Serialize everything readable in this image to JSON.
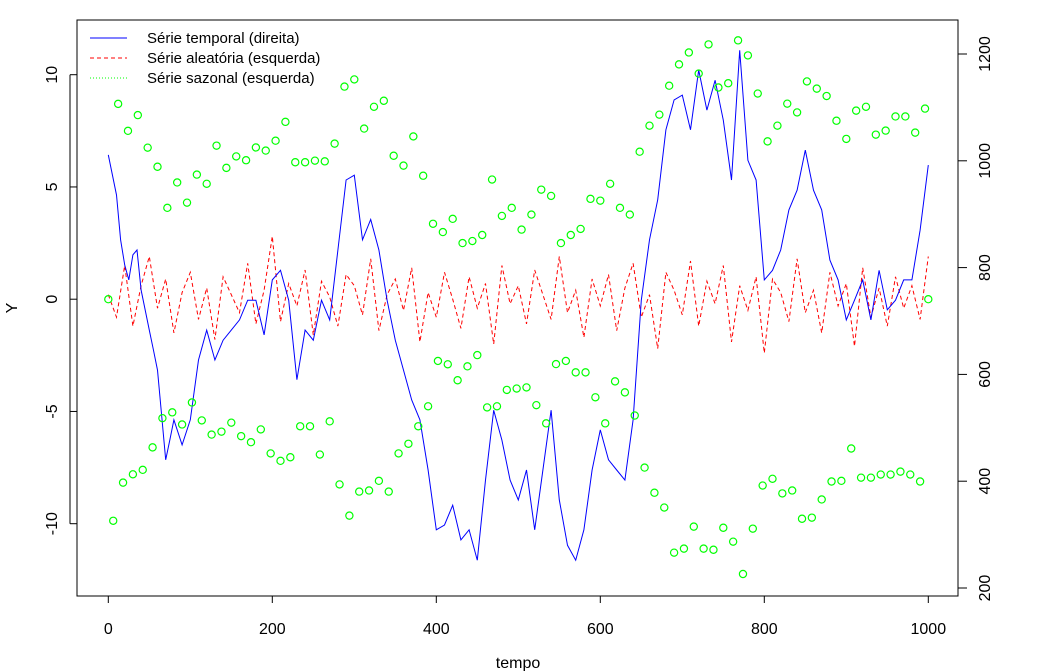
{
  "chart_data": {
    "type": "line",
    "title": "",
    "xlabel": "tempo",
    "ylabel": "Y",
    "y2label": "",
    "xlim": [
      0,
      1000
    ],
    "ylim": [
      -12.3,
      11.9
    ],
    "y2lim": [
      200,
      1240
    ],
    "x_ticks": [
      "0",
      "200",
      "400",
      "600",
      "800",
      "1000"
    ],
    "y_ticks": [
      "-10",
      "-5",
      "0",
      "5",
      "10"
    ],
    "y2_ticks": [
      "200",
      "400",
      "600",
      "800",
      "1000",
      "1200"
    ],
    "grid": false,
    "legend_position": "top-left",
    "legend": [
      {
        "label": "Série temporal (direita)",
        "color": "#0000FF",
        "style": "solid"
      },
      {
        "label": "Série aleatória (esquerda)",
        "color": "#FF0000",
        "style": "dashed"
      },
      {
        "label": "Série sazonal (esquerda)",
        "color": "#00FF00",
        "style": "dotted"
      }
    ],
    "series": [
      {
        "name": "Série temporal (direita)",
        "axis": "right",
        "type": "line",
        "color": "#0000FF",
        "x": [
          0,
          10,
          15,
          20,
          25,
          30,
          35,
          40,
          50,
          55,
          60,
          65,
          70,
          75,
          80,
          90,
          100,
          110,
          120,
          130,
          140,
          150,
          160,
          170,
          180,
          190,
          200,
          210,
          220,
          230,
          240,
          250,
          260,
          270,
          280,
          290,
          300,
          310,
          320,
          330,
          340,
          350,
          360,
          370,
          380,
          390,
          400,
          410,
          420,
          430,
          440,
          450,
          460,
          470,
          480,
          490,
          500,
          510,
          520,
          530,
          540,
          550,
          560,
          570,
          580,
          590,
          600,
          610,
          620,
          630,
          640,
          650,
          660,
          670,
          680,
          690,
          700,
          710,
          720,
          730,
          740,
          750,
          760,
          770,
          780,
          790,
          800,
          810,
          820,
          830,
          840,
          850,
          860,
          870,
          880,
          890,
          900,
          910,
          920,
          930,
          940,
          950,
          960,
          970,
          980,
          990,
          1000
        ],
        "values": [
          1011,
          936,
          852,
          805,
          777,
          824,
          833,
          758,
          683,
          646,
          608,
          524,
          440,
          477,
          515,
          468,
          515,
          627,
          683,
          627,
          664,
          683,
          702,
          739,
          739,
          674,
          777,
          795,
          739,
          590,
          683,
          664,
          739,
          702,
          833,
          964,
          973,
          852,
          890,
          833,
          739,
          664,
          608,
          552,
          515,
          421,
          309,
          318,
          355,
          290,
          309,
          252,
          402,
          533,
          477,
          402,
          365,
          421,
          309,
          421,
          533,
          365,
          280,
          252,
          309,
          421,
          496,
          440,
          421,
          402,
          515,
          739,
          852,
          927,
          1058,
          1114,
          1123,
          1058,
          1170,
          1095,
          1151,
          1076,
          964,
          1207,
          1001,
          964,
          777,
          795,
          833,
          908,
          945,
          1020,
          945,
          908,
          814,
          777,
          702,
          739,
          777,
          702,
          795,
          721,
          739,
          777,
          777,
          870,
          992
        ]
      },
      {
        "name": "Série aleatória (esquerda)",
        "axis": "left",
        "type": "line",
        "color": "#FF0000",
        "x_step": 10,
        "values": [
          0.2,
          -0.8,
          1.5,
          -1.2,
          0.6,
          1.9,
          -0.4,
          0.9,
          -1.5,
          0.3,
          1.2,
          -0.9,
          0.5,
          -1.8,
          1.0,
          0.2,
          -0.6,
          1.6,
          -1.1,
          0.4,
          2.8,
          -1.0,
          0.7,
          -0.3,
          1.3,
          -1.6,
          0.8,
          0.1,
          -1.2,
          1.1,
          0.6,
          -0.7,
          1.8,
          -1.4,
          0.2,
          0.9,
          -0.5,
          1.4,
          -1.9,
          0.3,
          -0.8,
          1.2,
          0.0,
          -1.3,
          1.0,
          -0.4,
          0.7,
          -2.0,
          1.5,
          -0.2,
          0.6,
          -1.1,
          1.3,
          0.2,
          -0.9,
          1.9,
          -0.6,
          0.4,
          -1.7,
          0.9,
          -0.3,
          1.1,
          -1.4,
          0.5,
          1.6,
          -0.8,
          0.2,
          -2.2,
          1.2,
          0.4,
          -0.7,
          1.7,
          -1.2,
          0.8,
          -0.2,
          1.5,
          -1.9,
          0.6,
          -0.5,
          1.0,
          -2.4,
          0.9,
          0.3,
          -1.0,
          1.8,
          -0.6,
          0.4,
          -1.5,
          1.2,
          -0.3,
          0.7,
          -2.1,
          1.4,
          -0.8,
          0.5,
          -1.2,
          1.0,
          -0.4,
          0.6,
          -0.9,
          1.9
        ]
      },
      {
        "name": "Série sazonal (esquerda)",
        "axis": "left",
        "type": "scatter",
        "marker": "open-circle",
        "color": "#00FF00",
        "x_step": 6,
        "values": [
          0,
          -9.87,
          8.7,
          -8.17,
          7.5,
          -7.8,
          8.2,
          -7.6,
          6.75,
          -6.6,
          5.9,
          -5.3,
          4.07,
          -5.04,
          5.2,
          -5.58,
          4.3,
          -4.6,
          5.55,
          -5.4,
          5.14,
          -6.03,
          6.84,
          -5.9,
          5.85,
          -5.5,
          6.36,
          -6.1,
          6.19,
          -6.37,
          6.76,
          -5.8,
          6.62,
          -6.87,
          7.06,
          -7.2,
          7.9,
          -7.04,
          6.1,
          -5.66,
          6.1,
          -5.66,
          6.17,
          -6.92,
          6.14,
          -5.44,
          6.93,
          -8.25,
          9.47,
          -9.64,
          9.79,
          -8.57,
          7.6,
          -8.52,
          8.57,
          -8.09,
          8.84,
          -8.57,
          6.39,
          -6.87,
          5.95,
          -6.44,
          7.25,
          -5.66,
          5.5,
          -4.77,
          3.36,
          -2.75,
          2.99,
          -2.9,
          3.58,
          -3.61,
          2.5,
          -2.99,
          2.59,
          -2.49,
          2.86,
          -4.82,
          5.33,
          -4.77,
          3.71,
          -4.04,
          4.07,
          -3.98,
          3.1,
          -3.93,
          3.77,
          -4.72,
          4.88,
          -5.53,
          4.6,
          -2.89,
          2.5,
          -2.75,
          2.86,
          -3.26,
          3.13,
          -3.26,
          4.47,
          -4.37,
          4.39,
          -5.53,
          5.14,
          -3.66,
          4.07,
          -4.15,
          3.77,
          -5.18,
          6.57,
          -7.5,
          7.73,
          -8.62,
          8.22,
          -9.28,
          9.51,
          -11.29,
          10.46,
          -11.11,
          10.99,
          -10.13,
          10.05,
          -11.11,
          11.35,
          -11.16,
          9.43,
          -10.18,
          9.62,
          -10.8,
          11.53,
          -12.24,
          10.86,
          -10.22,
          9.16,
          -8.3,
          7.03,
          -8.0,
          7.73,
          -8.65,
          8.71,
          -8.52,
          8.32,
          -9.78,
          9.7,
          -9.73,
          9.38,
          -8.92,
          9.05,
          -8.12,
          7.95,
          -8.09,
          7.14,
          -6.65,
          8.4,
          -7.95,
          8.57,
          -7.95,
          7.33,
          -7.81,
          7.51,
          -7.81,
          8.14,
          -7.68,
          8.14,
          -7.81,
          7.42,
          -8.12,
          8.49
        ],
        "extra_points": [
          {
            "x": 1000,
            "y": 0
          }
        ]
      }
    ]
  }
}
